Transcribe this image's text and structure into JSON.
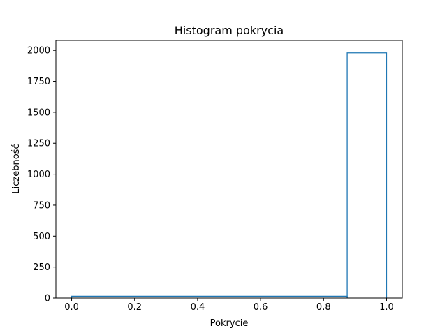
{
  "chart_data": {
    "type": "bar",
    "title": "Histogram pokrycia",
    "xlabel": "Pokrycie",
    "ylabel": "Liczebność",
    "xlim": [
      -0.05,
      1.05
    ],
    "ylim": [
      0,
      2080
    ],
    "xticks": [
      0.0,
      0.2,
      0.4,
      0.6,
      0.8,
      1.0
    ],
    "xtick_labels": [
      "0.0",
      "0.2",
      "0.4",
      "0.6",
      "0.8",
      "1.0"
    ],
    "yticks": [
      0,
      250,
      500,
      750,
      1000,
      1250,
      1500,
      1750,
      2000
    ],
    "ytick_labels": [
      "0",
      "250",
      "500",
      "750",
      "1000",
      "1250",
      "1500",
      "1750",
      "2000"
    ],
    "histtype": "step",
    "bins": [
      {
        "start": 0.0,
        "end": 0.875,
        "count": 15
      },
      {
        "start": 0.875,
        "end": 1.0,
        "count": 1980
      }
    ],
    "grid": false,
    "legend": "none",
    "colors": {
      "series": "#1f77b4",
      "axes": "#000000",
      "background": "#ffffff"
    }
  }
}
